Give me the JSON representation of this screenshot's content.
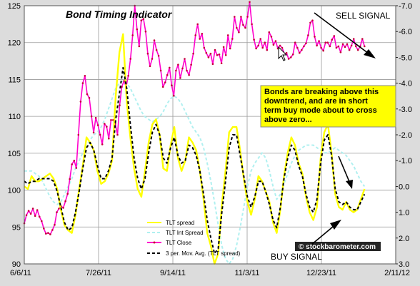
{
  "chart_data": {
    "type": "line",
    "title": "Bond Timing Indicator",
    "x_ticks": [
      "6/6/11",
      "7/26/11",
      "9/14/11",
      "11/3/11",
      "12/23/11",
      "2/11/12"
    ],
    "y_left": {
      "ticks": [
        "90",
        "95",
        "100",
        "105",
        "110",
        "115",
        "120",
        "125"
      ],
      "range": [
        90,
        125
      ]
    },
    "y_right": {
      "ticks": [
        "-7.0",
        "-6.0",
        "-5.0",
        "-4.0",
        "-3.0",
        "-2.0",
        "-1.0",
        "0.0",
        "1.0",
        "2.0",
        "3.0"
      ],
      "range": [
        3.0,
        -7.0
      ],
      "inverted": true
    },
    "grid": true,
    "legend_position": "bottom-center",
    "series": [
      {
        "name": "TLT spread",
        "color": "#ffff00",
        "axis": "right",
        "values": [
          0.0,
          0.1,
          -0.4,
          -0.2,
          -0.2,
          -0.3,
          -0.4,
          -0.5,
          -0.3,
          0.1,
          0.9,
          1.5,
          1.7,
          1.8,
          1.1,
          0.1,
          -0.8,
          -1.9,
          -1.7,
          -1.4,
          -0.6,
          -0.1,
          -0.2,
          -0.5,
          -1.0,
          -3.5,
          -5.2,
          -5.9,
          -3.3,
          -1.9,
          -0.7,
          0.1,
          0.4,
          -0.6,
          -1.7,
          -2.4,
          -2.6,
          -2.0,
          -0.7,
          -0.6,
          -1.6,
          -2.3,
          -1.1,
          -0.6,
          -1.0,
          -1.9,
          -1.7,
          -1.4,
          -0.6,
          0.5,
          1.8,
          2.3,
          3.0,
          2.6,
          0.7,
          -0.6,
          -2.1,
          -2.3,
          -2.3,
          -1.4,
          -0.3,
          0.6,
          1.1,
          0.5,
          -0.4,
          -0.2,
          0.2,
          0.6,
          1.4,
          1.8,
          0.9,
          -0.4,
          -1.3,
          -1.9,
          -1.6,
          -0.9,
          -0.5,
          0.4,
          1.0,
          1.3,
          0.8,
          -1.1,
          -2.1,
          -2.4,
          -1.3,
          0.3,
          0.8,
          0.9,
          0.6,
          0.9,
          1.0,
          0.9,
          0.5,
          0.1
        ],
        "x_range": [
          "6/6/11",
          "1/21/12"
        ]
      },
      {
        "name": "TLT Int Spread",
        "color": "#b0f0f0",
        "axis": "right",
        "values": [
          -0.6,
          -0.6,
          -0.6,
          -0.5,
          -0.4,
          -0.2,
          0.1,
          0.4,
          0.6,
          0.7,
          0.6,
          0.3,
          0.0,
          -0.3,
          -0.7,
          -1.0,
          -1.3,
          -1.6,
          -1.8,
          -2.0,
          -2.1,
          -2.3,
          -2.6,
          -3.0,
          -3.4,
          -3.8,
          -4.0,
          -4.1,
          -4.0,
          -3.8,
          -3.5,
          -3.2,
          -2.9,
          -2.7,
          -2.6,
          -2.5,
          -2.6,
          -2.7,
          -2.9,
          -3.2,
          -3.4,
          -3.5,
          -3.4,
          -3.2,
          -2.9,
          -2.6,
          -2.3,
          -2.1,
          -1.9,
          -1.5,
          -0.9,
          -0.2,
          0.6,
          1.5,
          2.3,
          2.8,
          3.0,
          2.8,
          2.3,
          1.6,
          0.8,
          0.0,
          -0.6,
          -0.9,
          -1.1,
          -1.3,
          -1.1,
          -0.6,
          0.0,
          0.5,
          0.3,
          -0.1,
          -0.5,
          -0.9,
          -1.2,
          -1.4,
          -1.5,
          -1.6,
          -1.6,
          -1.6,
          -1.5,
          -1.4,
          -1.3,
          -1.3,
          -1.4,
          -1.5,
          -1.4,
          -1.3,
          -1.2,
          -1.0,
          -0.8,
          -0.5,
          -0.2,
          0.0
        ],
        "x_range": [
          "6/6/11",
          "1/21/12"
        ]
      },
      {
        "name": "TLT Close",
        "color": "#ff00cc",
        "axis": "left",
        "values": [
          95.5,
          96.6,
          97.2,
          96.8,
          97.5,
          96.5,
          97.3,
          96.4,
          95.8,
          94.8,
          94.1,
          94.2,
          94.0,
          94.6,
          95.3,
          97.0,
          97.5,
          97.8,
          97.6,
          98.5,
          99.5,
          101.5,
          103.5,
          104.0,
          103.0,
          107.5,
          112.0,
          114.5,
          115.5,
          113.0,
          112.5,
          110.0,
          107.8,
          109.8,
          108.8,
          107.5,
          106.2,
          109.0,
          108.6,
          107.0,
          109.5,
          109.5,
          109.0,
          107.5,
          111.5,
          114.0,
          114.8,
          114.0,
          115.5,
          117.8,
          121.0,
          125.0,
          121.8,
          119.5,
          123.0,
          123.2,
          121.5,
          118.5,
          116.8,
          117.8,
          120.3,
          119.0,
          118.2,
          116.2,
          114.0,
          114.6,
          115.6,
          116.6,
          114.2,
          112.8,
          116.2,
          117.0,
          115.2,
          116.5,
          117.8,
          116.2,
          115.6,
          117.0,
          118.5,
          121.0,
          122.5,
          120.5,
          121.2,
          119.3,
          118.6,
          118.0,
          118.5,
          117.1,
          119.0,
          118.3,
          118.4,
          117.2,
          119.4,
          118.3,
          121.0,
          119.2,
          120.5,
          123.5,
          122.0,
          121.4,
          123.5,
          122.4,
          122.0,
          123.5,
          125.5,
          122.5,
          120.4,
          119.2,
          119.6,
          120.5,
          119.3,
          120.0,
          119.0,
          121.4,
          120.8,
          119.7,
          120.2,
          119.2,
          119.6,
          119.3,
          118.5,
          118.6,
          117.8,
          118.0,
          118.4,
          120.0,
          119.3,
          118.6,
          119.0,
          119.5,
          119.9,
          121.0,
          122.7,
          123.0,
          120.8,
          119.6,
          120.2,
          119.3,
          118.9,
          120.0,
          120.0,
          119.5,
          120.4,
          120.9,
          119.3,
          119.5,
          118.7,
          119.8,
          119.4,
          119.8,
          119.0,
          119.6,
          120.5,
          119.5,
          119.0,
          119.5,
          120.5,
          119.5
        ],
        "x_range": [
          "6/6/11",
          "1/21/12"
        ],
        "markers": true
      },
      {
        "name": "3 per. Mov. Avg. (TLT spread)",
        "color": "#000000",
        "axis": "right",
        "dashed": true,
        "values": [
          -0.2,
          -0.1,
          -0.2,
          -0.2,
          -0.3,
          -0.3,
          -0.3,
          -0.3,
          -0.2,
          0.2,
          0.8,
          1.4,
          1.7,
          1.6,
          1.0,
          0.2,
          -0.7,
          -1.5,
          -1.7,
          -1.4,
          -0.8,
          -0.3,
          -0.3,
          -0.6,
          -1.1,
          -2.6,
          -3.6,
          -4.6,
          -3.8,
          -2.4,
          -1.1,
          -0.3,
          0.1,
          -0.3,
          -1.3,
          -2.1,
          -2.4,
          -2.0,
          -1.1,
          -0.9,
          -1.5,
          -1.9,
          -1.2,
          -0.9,
          -1.0,
          -1.6,
          -1.5,
          -1.2,
          -0.6,
          0.3,
          1.3,
          2.0,
          2.6,
          2.4,
          1.0,
          -0.2,
          -1.5,
          -2.0,
          -2.0,
          -1.2,
          -0.4,
          0.4,
          0.8,
          0.4,
          -0.2,
          -0.2,
          0.2,
          0.7,
          1.3,
          1.6,
          0.8,
          -0.3,
          -1.1,
          -1.6,
          -1.4,
          -0.8,
          -0.4,
          0.3,
          0.8,
          1.0,
          0.5,
          -0.9,
          -1.8,
          -2.0,
          -1.2,
          0.1,
          0.6,
          0.7,
          0.6,
          0.8,
          0.9,
          0.9,
          0.6,
          0.3
        ],
        "x_range": [
          "6/6/11",
          "1/21/12"
        ]
      }
    ],
    "annotations": {
      "sell": "SELL  SIGNAL",
      "buy": "BUY  SIGNAL",
      "note_lines": [
        "Bonds are breaking above this",
        "downtrend, and are in short",
        "term buy mode about to cross",
        "above zero..."
      ],
      "watermark": "© stockbarometer.com"
    }
  }
}
